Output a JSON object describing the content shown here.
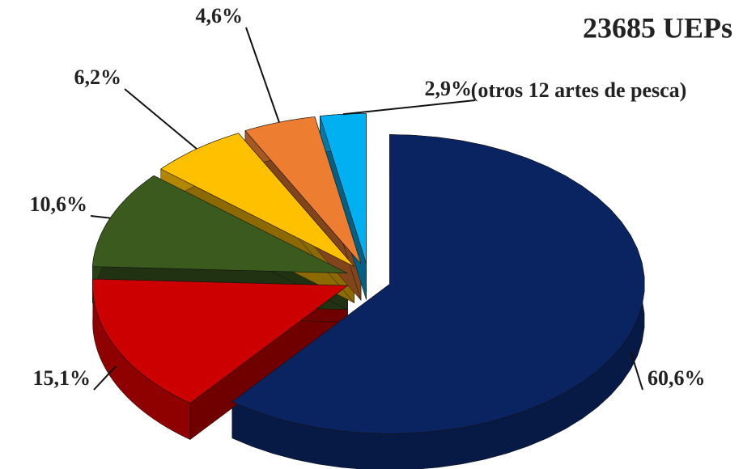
{
  "chart_data": {
    "type": "pie",
    "title": "23685 UEPs",
    "values": [
      60.6,
      15.1,
      10.6,
      6.2,
      4.6,
      2.9
    ],
    "value_labels": [
      "60,6%",
      "15,1%",
      "10,6%",
      "6,2%",
      "4,6%",
      "2,9%"
    ],
    "colors": [
      "#0a2462",
      "#cc0000",
      "#3a5a1e",
      "#ffc000",
      "#ed7d31",
      "#00b0f0"
    ],
    "annotation": "(otros 12 artes de pesca)"
  }
}
